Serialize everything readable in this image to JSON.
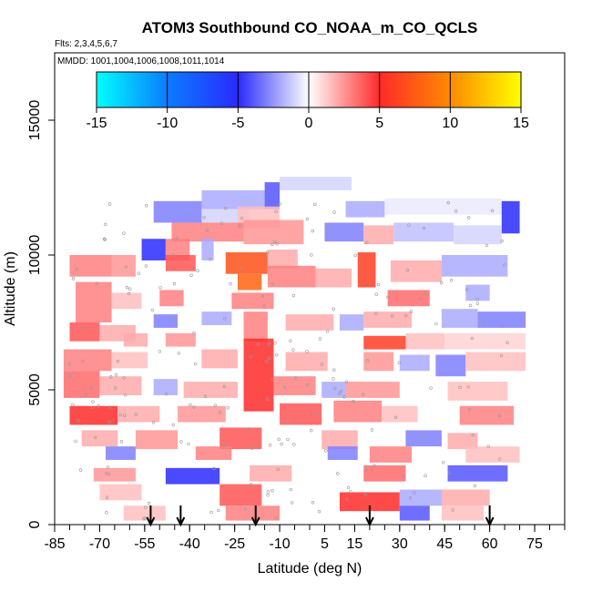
{
  "chart_data": {
    "type": "heatmap",
    "title": "ATOM3 Southbound CO_NOAA_m_CO_QCLS",
    "flights_label": "Flts: 2,3,4,5,6,7",
    "mmdd_label": "MMDD: 1001,1004,1006,1008,1011,1014",
    "xlabel": "Latitude (deg N)",
    "ylabel": "Altitude (m)",
    "xlim": [
      -85,
      85
    ],
    "ylim": [
      0,
      17500
    ],
    "xticks": [
      -85,
      -70,
      -55,
      -40,
      -25,
      -10,
      5,
      15,
      30,
      45,
      60,
      75
    ],
    "xtick_labels": [
      "-85",
      "-70",
      "-55",
      "-40",
      "-25",
      "-10",
      "5",
      "15",
      "30",
      "45",
      "60",
      "75"
    ],
    "xminor_step": 5,
    "yticks": [
      0,
      5000,
      10000,
      15000
    ],
    "ytick_labels": [
      "0",
      "5000",
      "10000",
      "15000"
    ],
    "colorbar": {
      "min": -15,
      "max": 15,
      "ticks": [
        -15,
        -10,
        -5,
        0,
        5,
        10,
        15
      ],
      "tick_labels": [
        "-15",
        "-10",
        "-5",
        "0",
        "5",
        "10",
        "15"
      ],
      "stops": [
        {
          "v": -15,
          "color": "#00ffff"
        },
        {
          "v": -10,
          "color": "#0a7cff"
        },
        {
          "v": -5,
          "color": "#2a2aff"
        },
        {
          "v": 0,
          "color": "#ffffff"
        },
        {
          "v": 5,
          "color": "#ff2a2a"
        },
        {
          "v": 10,
          "color": "#ff8a00"
        },
        {
          "v": 15,
          "color": "#ffff00"
        }
      ]
    },
    "arrow_latitudes": [
      -53,
      -43,
      -18,
      20,
      60
    ],
    "cells": [
      {
        "lat0": -36,
        "lat1": -15,
        "alt0": 11700,
        "alt1": 12400,
        "v": -2
      },
      {
        "lat0": -15,
        "lat1": -10,
        "alt0": 11700,
        "alt1": 12700,
        "v": -4
      },
      {
        "lat0": -10,
        "lat1": 14,
        "alt0": 12400,
        "alt1": 12900,
        "v": -1
      },
      {
        "lat0": -52,
        "lat1": -36,
        "alt0": 11200,
        "alt1": 12000,
        "v": -3
      },
      {
        "lat0": -36,
        "lat1": -20,
        "alt0": 11200,
        "alt1": 11700,
        "v": -1
      },
      {
        "lat0": -24,
        "lat1": -10,
        "alt0": 11000,
        "alt1": 11800,
        "v": 1.5
      },
      {
        "lat0": 12,
        "lat1": 25,
        "alt0": 11400,
        "alt1": 12000,
        "v": -2
      },
      {
        "lat0": 25,
        "lat1": 64,
        "alt0": 11500,
        "alt1": 12100,
        "v": -0.5
      },
      {
        "lat0": 64,
        "lat1": 70,
        "alt0": 10800,
        "alt1": 12000,
        "v": -5
      },
      {
        "lat0": -46,
        "lat1": -22,
        "alt0": 10500,
        "alt1": 11200,
        "v": 3
      },
      {
        "lat0": -22,
        "lat1": -2,
        "alt0": 10400,
        "alt1": 11300,
        "v": 2.5
      },
      {
        "lat0": 5,
        "lat1": 18,
        "alt0": 10500,
        "alt1": 11200,
        "v": -3
      },
      {
        "lat0": 18,
        "lat1": 28,
        "alt0": 10400,
        "alt1": 11100,
        "v": 2
      },
      {
        "lat0": 28,
        "lat1": 48,
        "alt0": 10500,
        "alt1": 11200,
        "v": -1.5
      },
      {
        "lat0": 48,
        "lat1": 64,
        "alt0": 10400,
        "alt1": 11100,
        "v": -1
      },
      {
        "lat0": -56,
        "lat1": -48,
        "alt0": 9800,
        "alt1": 10600,
        "v": -5
      },
      {
        "lat0": -48,
        "lat1": -40,
        "alt0": 9800,
        "alt1": 10600,
        "v": 3
      },
      {
        "lat0": -36,
        "lat1": -32,
        "alt0": 9800,
        "alt1": 10600,
        "v": -2
      },
      {
        "lat0": -48,
        "lat1": -38,
        "alt0": 9400,
        "alt1": 10000,
        "v": 4
      },
      {
        "lat0": -28,
        "lat1": -14,
        "alt0": 9300,
        "alt1": 10100,
        "v": 7
      },
      {
        "lat0": -14,
        "lat1": -4,
        "alt0": 9500,
        "alt1": 10200,
        "v": 2
      },
      {
        "lat0": -80,
        "lat1": -66,
        "alt0": 9200,
        "alt1": 10000,
        "v": 3
      },
      {
        "lat0": -66,
        "lat1": -58,
        "alt0": 9200,
        "alt1": 10000,
        "v": 2.5
      },
      {
        "lat0": -24,
        "lat1": -16,
        "alt0": 8700,
        "alt1": 9300,
        "v": 8
      },
      {
        "lat0": -14,
        "lat1": 2,
        "alt0": 8800,
        "alt1": 9600,
        "v": 3
      },
      {
        "lat0": 2,
        "lat1": 14,
        "alt0": 8800,
        "alt1": 9500,
        "v": 2
      },
      {
        "lat0": 16,
        "lat1": 22,
        "alt0": 8800,
        "alt1": 10100,
        "v": 6
      },
      {
        "lat0": 27,
        "lat1": 44,
        "alt0": 9000,
        "alt1": 9800,
        "v": 2
      },
      {
        "lat0": 44,
        "lat1": 66,
        "alt0": 9200,
        "alt1": 10000,
        "v": -2
      },
      {
        "lat0": -78,
        "lat1": -66,
        "alt0": 7500,
        "alt1": 9000,
        "v": 3
      },
      {
        "lat0": -66,
        "lat1": -56,
        "alt0": 8000,
        "alt1": 8600,
        "v": 1.5
      },
      {
        "lat0": -50,
        "lat1": -42,
        "alt0": 8100,
        "alt1": 8700,
        "v": 3
      },
      {
        "lat0": -26,
        "lat1": -12,
        "alt0": 8000,
        "alt1": 8600,
        "v": 3
      },
      {
        "lat0": 26,
        "lat1": 40,
        "alt0": 8100,
        "alt1": 8700,
        "v": 3.5
      },
      {
        "lat0": 52,
        "lat1": 60,
        "alt0": 8300,
        "alt1": 8900,
        "v": -2
      },
      {
        "lat0": -80,
        "lat1": -70,
        "alt0": 6800,
        "alt1": 7500,
        "v": 4
      },
      {
        "lat0": -70,
        "lat1": -58,
        "alt0": 6800,
        "alt1": 7400,
        "v": 2
      },
      {
        "lat0": -52,
        "lat1": -44,
        "alt0": 7300,
        "alt1": 7800,
        "v": -3
      },
      {
        "lat0": -36,
        "lat1": -26,
        "alt0": 7400,
        "alt1": 7900,
        "v": -2
      },
      {
        "lat0": -22,
        "lat1": -14,
        "alt0": 6800,
        "alt1": 7900,
        "v": 3
      },
      {
        "lat0": -8,
        "lat1": 8,
        "alt0": 7200,
        "alt1": 7800,
        "v": 2
      },
      {
        "lat0": 10,
        "lat1": 18,
        "alt0": 7200,
        "alt1": 7800,
        "v": -2
      },
      {
        "lat0": 18,
        "lat1": 34,
        "alt0": 7300,
        "alt1": 7900,
        "v": 2
      },
      {
        "lat0": 44,
        "lat1": 56,
        "alt0": 7300,
        "alt1": 8000,
        "v": -2
      },
      {
        "lat0": 56,
        "lat1": 72,
        "alt0": 7300,
        "alt1": 7900,
        "v": -3
      },
      {
        "lat0": -62,
        "lat1": -54,
        "alt0": 6600,
        "alt1": 7100,
        "v": 2
      },
      {
        "lat0": -48,
        "lat1": -38,
        "alt0": 6600,
        "alt1": 7100,
        "v": 2.5
      },
      {
        "lat0": 18,
        "lat1": 32,
        "alt0": 6500,
        "alt1": 7000,
        "v": 6
      },
      {
        "lat0": 32,
        "lat1": 45,
        "alt0": 6500,
        "alt1": 7100,
        "v": 1.5
      },
      {
        "lat0": 45,
        "lat1": 72,
        "alt0": 6500,
        "alt1": 7100,
        "v": 1
      },
      {
        "lat0": -82,
        "lat1": -66,
        "alt0": 5700,
        "alt1": 6500,
        "v": 3
      },
      {
        "lat0": -66,
        "lat1": -54,
        "alt0": 5800,
        "alt1": 6400,
        "v": 1.5
      },
      {
        "lat0": -36,
        "lat1": -24,
        "alt0": 5800,
        "alt1": 6500,
        "v": 2
      },
      {
        "lat0": -22,
        "lat1": -12,
        "alt0": 4200,
        "alt1": 6900,
        "v": 5
      },
      {
        "lat0": -8,
        "lat1": 6,
        "alt0": 5700,
        "alt1": 6400,
        "v": 2
      },
      {
        "lat0": 18,
        "lat1": 28,
        "alt0": 5700,
        "alt1": 6400,
        "v": 2.5
      },
      {
        "lat0": 30,
        "lat1": 40,
        "alt0": 5700,
        "alt1": 6300,
        "v": -2
      },
      {
        "lat0": 42,
        "lat1": 52,
        "alt0": 5500,
        "alt1": 6300,
        "v": -3
      },
      {
        "lat0": 52,
        "lat1": 72,
        "alt0": 5700,
        "alt1": 6400,
        "v": 1.5
      },
      {
        "lat0": -82,
        "lat1": -70,
        "alt0": 4700,
        "alt1": 5700,
        "v": 3.5
      },
      {
        "lat0": -70,
        "lat1": -56,
        "alt0": 4800,
        "alt1": 5500,
        "v": 2
      },
      {
        "lat0": -52,
        "lat1": -44,
        "alt0": 4800,
        "alt1": 5400,
        "v": -2
      },
      {
        "lat0": -42,
        "lat1": -24,
        "alt0": 4700,
        "alt1": 5300,
        "v": 2
      },
      {
        "lat0": -12,
        "lat1": 2,
        "alt0": 4800,
        "alt1": 5500,
        "v": 3
      },
      {
        "lat0": 4,
        "lat1": 12,
        "alt0": 4700,
        "alt1": 5300,
        "v": -2
      },
      {
        "lat0": 12,
        "lat1": 30,
        "alt0": 4700,
        "alt1": 5300,
        "v": 2.5
      },
      {
        "lat0": 46,
        "lat1": 66,
        "alt0": 4600,
        "alt1": 5300,
        "v": 1.5
      },
      {
        "lat0": -80,
        "lat1": -64,
        "alt0": 3700,
        "alt1": 4400,
        "v": 5
      },
      {
        "lat0": -64,
        "lat1": -50,
        "alt0": 3800,
        "alt1": 4400,
        "v": 2
      },
      {
        "lat0": -44,
        "lat1": -28,
        "alt0": 3800,
        "alt1": 4400,
        "v": 2.5
      },
      {
        "lat0": -10,
        "lat1": 4,
        "alt0": 3700,
        "alt1": 4500,
        "v": 4
      },
      {
        "lat0": 8,
        "lat1": 24,
        "alt0": 3800,
        "alt1": 4600,
        "v": 3
      },
      {
        "lat0": 24,
        "lat1": 36,
        "alt0": 3800,
        "alt1": 4400,
        "v": 1.5
      },
      {
        "lat0": 50,
        "lat1": 68,
        "alt0": 3700,
        "alt1": 4400,
        "v": 3
      },
      {
        "lat0": -76,
        "lat1": -64,
        "alt0": 2900,
        "alt1": 3500,
        "v": 2
      },
      {
        "lat0": -58,
        "lat1": -44,
        "alt0": 2800,
        "alt1": 3500,
        "v": 2.5
      },
      {
        "lat0": -30,
        "lat1": -16,
        "alt0": 2800,
        "alt1": 3600,
        "v": 4
      },
      {
        "lat0": 4,
        "lat1": 16,
        "alt0": 2800,
        "alt1": 3500,
        "v": 2
      },
      {
        "lat0": 32,
        "lat1": 44,
        "alt0": 2900,
        "alt1": 3500,
        "v": -3
      },
      {
        "lat0": 46,
        "lat1": 56,
        "alt0": 2800,
        "alt1": 3400,
        "v": 2
      },
      {
        "lat0": -68,
        "lat1": -58,
        "alt0": 2400,
        "alt1": 2900,
        "v": -3
      },
      {
        "lat0": -38,
        "lat1": -26,
        "alt0": 2400,
        "alt1": 2900,
        "v": 3
      },
      {
        "lat0": 6,
        "lat1": 16,
        "alt0": 2400,
        "alt1": 2900,
        "v": -3
      },
      {
        "lat0": 20,
        "lat1": 34,
        "alt0": 2300,
        "alt1": 2900,
        "v": 3
      },
      {
        "lat0": 52,
        "lat1": 70,
        "alt0": 2300,
        "alt1": 2900,
        "v": 1.5
      },
      {
        "lat0": -72,
        "lat1": -58,
        "alt0": 1600,
        "alt1": 2100,
        "v": 2.5
      },
      {
        "lat0": -48,
        "lat1": -30,
        "alt0": 1500,
        "alt1": 2100,
        "v": -5
      },
      {
        "lat0": -20,
        "lat1": -6,
        "alt0": 1600,
        "alt1": 2200,
        "v": 2
      },
      {
        "lat0": 18,
        "lat1": 32,
        "alt0": 1600,
        "alt1": 2200,
        "v": 3.5
      },
      {
        "lat0": 46,
        "lat1": 66,
        "alt0": 1600,
        "alt1": 2200,
        "v": -4
      },
      {
        "lat0": -70,
        "lat1": -56,
        "alt0": 900,
        "alt1": 1500,
        "v": 1.5
      },
      {
        "lat0": -30,
        "lat1": -16,
        "alt0": 700,
        "alt1": 1500,
        "v": 4
      },
      {
        "lat0": 10,
        "lat1": 30,
        "alt0": 500,
        "alt1": 1200,
        "v": 5
      },
      {
        "lat0": 30,
        "lat1": 44,
        "alt0": 700,
        "alt1": 1300,
        "v": -2
      },
      {
        "lat0": 44,
        "lat1": 60,
        "alt0": 700,
        "alt1": 1300,
        "v": 2
      },
      {
        "lat0": -62,
        "lat1": -48,
        "alt0": 150,
        "alt1": 700,
        "v": 1.5
      },
      {
        "lat0": -28,
        "lat1": -10,
        "alt0": 150,
        "alt1": 700,
        "v": 3
      },
      {
        "lat0": 30,
        "lat1": 40,
        "alt0": 150,
        "alt1": 700,
        "v": -4
      },
      {
        "lat0": 44,
        "lat1": 58,
        "alt0": 150,
        "alt1": 700,
        "v": 1.5
      }
    ]
  }
}
